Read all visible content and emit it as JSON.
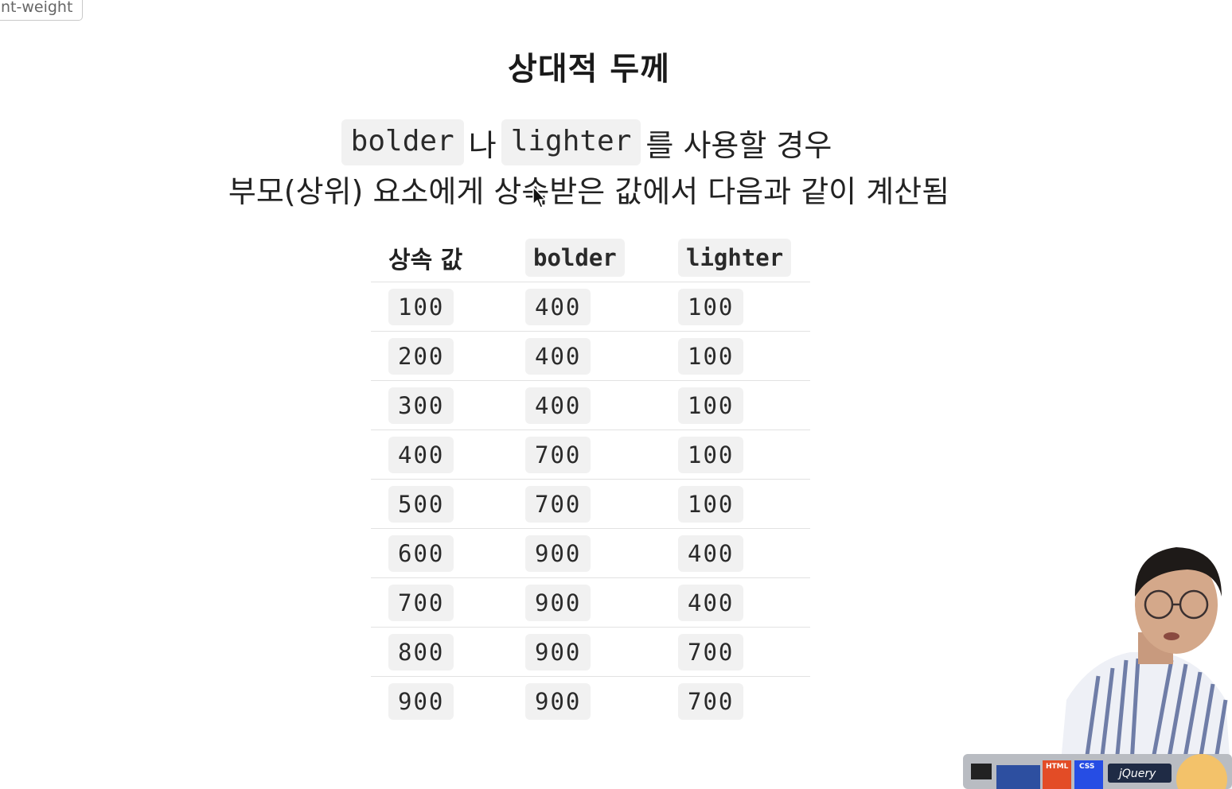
{
  "corner_tag": "nt-weight",
  "title": "상대적 두께",
  "description": {
    "line1": {
      "code1": "bolder",
      "mid": "나",
      "code2": "lighter",
      "end": "를 사용할 경우"
    },
    "line2": "부모(상위) 요소에게 상속받은 값에서 다음과 같이 계산됨"
  },
  "table": {
    "headers": [
      "상속 값",
      "bolder",
      "lighter"
    ],
    "rows": [
      [
        "100",
        "400",
        "100"
      ],
      [
        "200",
        "400",
        "100"
      ],
      [
        "300",
        "400",
        "100"
      ],
      [
        "400",
        "700",
        "100"
      ],
      [
        "500",
        "700",
        "100"
      ],
      [
        "600",
        "900",
        "400"
      ],
      [
        "700",
        "900",
        "400"
      ],
      [
        "800",
        "900",
        "700"
      ],
      [
        "900",
        "900",
        "700"
      ]
    ]
  },
  "laptop_stickers": [
    "HTML",
    "CSS",
    "jQuery"
  ],
  "colors": {
    "code_bg": "#f1f1f1",
    "text": "#222222",
    "divider": "#e2e2e2"
  }
}
